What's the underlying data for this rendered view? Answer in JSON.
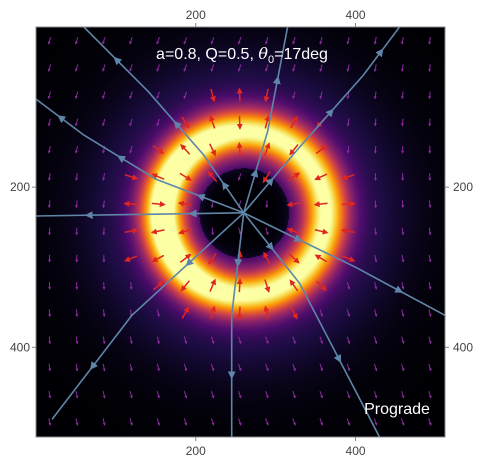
{
  "chart_data": {
    "type": "heatmap",
    "title": "a=0.8, Q=0.5, θ0=17deg",
    "title_parts": {
      "prefix": "a=0.8, Q=0.5, ",
      "symbol": "θ",
      "subscript": "0",
      "suffix": "=17deg"
    },
    "annotation": "Prograde",
    "xlim": [
      0,
      512
    ],
    "ylim": [
      0,
      512
    ],
    "y_inverted": true,
    "x_ticks": [
      200,
      400
    ],
    "y_ticks": [
      200,
      400
    ],
    "tick_labels_on": [
      "top",
      "bottom",
      "left",
      "right"
    ],
    "grid": false,
    "colormap": [
      "#000004",
      "#1b0c41",
      "#4a0c6b",
      "#781c6d",
      "#a52c60",
      "#cf4446",
      "#ed6925",
      "#fb9b06",
      "#f7d13d",
      "#fcffa4"
    ],
    "ring": {
      "center": [
        260,
        232
      ],
      "peak_radius": 102,
      "peak_width": 28,
      "max_intensity": 1.0,
      "brightest_side": "left"
    },
    "background_glow": {
      "max_intensity": 0.22
    },
    "vector_field": {
      "background_color": "#8c2a9e",
      "ring_color": "#e0261e",
      "sample_spacing": 34
    },
    "stream_color": "#5f86a8",
    "streamlines": [
      [
        [
          260,
          232
        ],
        [
          210,
          160
        ],
        [
          140,
          80
        ],
        [
          60,
          0
        ]
      ],
      [
        [
          260,
          232
        ],
        [
          330,
          150
        ],
        [
          410,
          60
        ],
        [
          455,
          0
        ]
      ],
      [
        [
          260,
          232
        ],
        [
          130,
          234
        ],
        [
          0,
          236
        ]
      ],
      [
        [
          260,
          232
        ],
        [
          245,
          360
        ],
        [
          245,
          512
        ]
      ],
      [
        [
          260,
          232
        ],
        [
          120,
          360
        ],
        [
          20,
          490
        ]
      ],
      [
        [
          260,
          232
        ],
        [
          290,
          130
        ],
        [
          315,
          0
        ]
      ],
      [
        [
          260,
          232
        ],
        [
          330,
          320
        ],
        [
          430,
          512
        ]
      ],
      [
        [
          260,
          232
        ],
        [
          150,
          190
        ],
        [
          60,
          135
        ],
        [
          0,
          90
        ]
      ],
      [
        [
          260,
          232
        ],
        [
          400,
          300
        ],
        [
          512,
          360
        ]
      ]
    ]
  }
}
